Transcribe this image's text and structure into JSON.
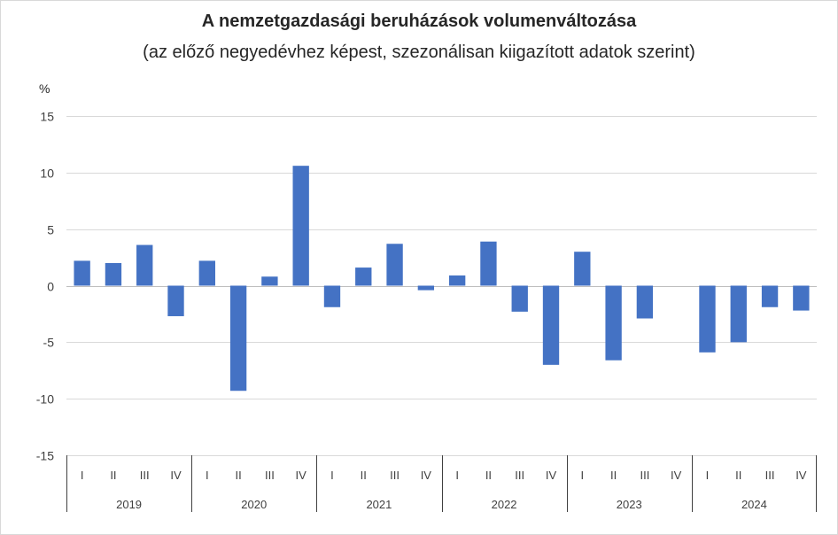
{
  "chart_data": {
    "type": "bar",
    "title": "A nemzetgazdasági beruházások volumenváltozása",
    "subtitle": "(az előző negyedévhez képest, szezonálisan kiigazított adatok szerint)",
    "ylabel": "%",
    "xlabel": "",
    "ylim": [
      -15,
      15
    ],
    "yticks": [
      15,
      10,
      5,
      0,
      -5,
      -10,
      -15
    ],
    "grid": true,
    "legend": "none",
    "bar_color": "#4472C4",
    "groups": [
      {
        "year": "2019",
        "quarters": [
          "I",
          "II",
          "III",
          "IV"
        ],
        "values": [
          2.2,
          2.0,
          3.6,
          -2.7
        ]
      },
      {
        "year": "2020",
        "quarters": [
          "I",
          "II",
          "III",
          "IV"
        ],
        "values": [
          2.2,
          -9.3,
          0.8,
          10.6
        ]
      },
      {
        "year": "2021",
        "quarters": [
          "I",
          "II",
          "III",
          "IV"
        ],
        "values": [
          -1.9,
          1.6,
          3.7,
          -0.4
        ]
      },
      {
        "year": "2022",
        "quarters": [
          "I",
          "II",
          "III",
          "IV"
        ],
        "values": [
          0.9,
          3.9,
          -2.3,
          -7.0
        ]
      },
      {
        "year": "2023",
        "quarters": [
          "I",
          "II",
          "III",
          "IV"
        ],
        "values": [
          3.0,
          -6.6,
          -2.9,
          0.0
        ]
      },
      {
        "year": "2024",
        "quarters": [
          "I",
          "II",
          "III",
          "IV"
        ],
        "values": [
          -5.9,
          -5.0,
          -1.9,
          -2.2
        ]
      }
    ]
  }
}
